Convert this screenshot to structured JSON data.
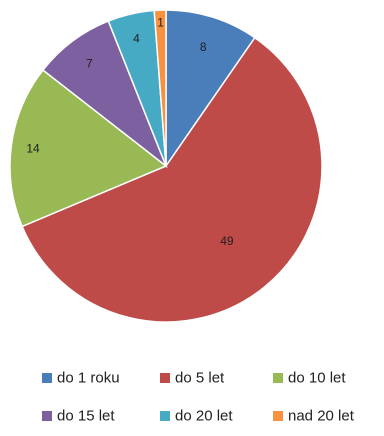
{
  "chart_data": {
    "type": "pie",
    "slices": [
      {
        "label": "do 1 roku",
        "value": 8,
        "color": "#4a7ebb"
      },
      {
        "label": "do 5 let",
        "value": 49,
        "color": "#be4b48"
      },
      {
        "label": "do 10 let",
        "value": 14,
        "color": "#98b954"
      },
      {
        "label": "do 15 let",
        "value": 7,
        "color": "#7d60a0"
      },
      {
        "label": "do 20 let",
        "value": 4,
        "color": "#46aac5"
      },
      {
        "label": "nad 20 let",
        "value": 1,
        "color": "#f69240"
      }
    ],
    "legend_position": "bottom",
    "start_angle": "top, clockwise"
  }
}
